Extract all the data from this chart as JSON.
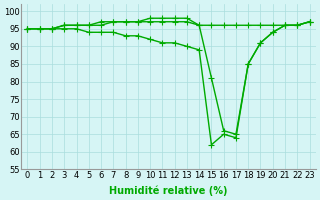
{
  "title": "",
  "xlabel": "Humidité relative (%)",
  "ylabel": "",
  "xlim": [
    -0.5,
    23.5
  ],
  "ylim": [
    55,
    102
  ],
  "yticks": [
    55,
    60,
    65,
    70,
    75,
    80,
    85,
    90,
    95,
    100
  ],
  "xticks": [
    0,
    1,
    2,
    3,
    4,
    5,
    6,
    7,
    8,
    9,
    10,
    11,
    12,
    13,
    14,
    15,
    16,
    17,
    18,
    19,
    20,
    21,
    22,
    23
  ],
  "bg_color": "#d6f5f5",
  "grid_color": "#aadddd",
  "line_color": "#00aa00",
  "line1": [
    95,
    95,
    95,
    96,
    96,
    96,
    96,
    97,
    97,
    97,
    98,
    98,
    98,
    98,
    96,
    96,
    96,
    96,
    96,
    96,
    96,
    96,
    96,
    97
  ],
  "line2": [
    95,
    95,
    95,
    96,
    96,
    96,
    97,
    97,
    97,
    97,
    97,
    97,
    97,
    97,
    96,
    81,
    66,
    65,
    85,
    91,
    94,
    96,
    96,
    97
  ],
  "line3": [
    95,
    95,
    95,
    95,
    95,
    94,
    94,
    94,
    93,
    93,
    92,
    91,
    91,
    90,
    89,
    62,
    65,
    64,
    85,
    91,
    94,
    96,
    96,
    97
  ],
  "marker": "+",
  "markersize": 4,
  "linewidth": 1.0,
  "font_size": 7,
  "tick_font_size": 6
}
